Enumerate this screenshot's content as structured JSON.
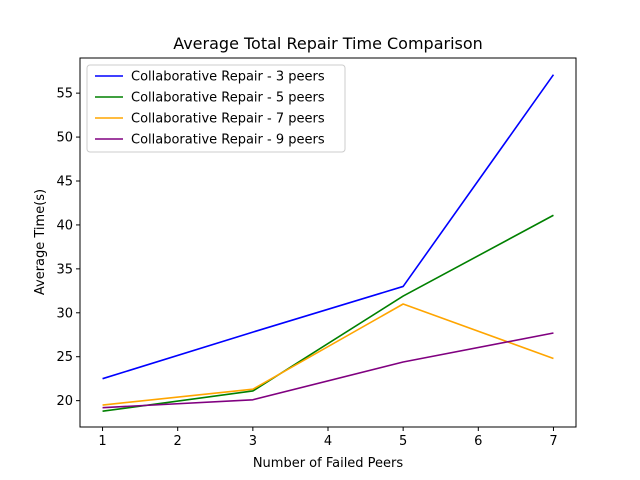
{
  "chart_data": {
    "type": "line",
    "title": "Average Total Repair Time Comparison",
    "xlabel": "Number of Failed Peers",
    "ylabel": "Average Time(s)",
    "x": [
      1,
      3,
      5,
      7
    ],
    "xlim": [
      0.7,
      7.3
    ],
    "ylim": [
      17.0,
      59.0
    ],
    "xticks": [
      1,
      2,
      3,
      4,
      5,
      6,
      7
    ],
    "yticks": [
      20,
      25,
      30,
      35,
      40,
      45,
      50,
      55
    ],
    "grid": false,
    "legend_position": "upper-left",
    "series": [
      {
        "name": "Collaborative Repair - 3 peers",
        "color": "#0000ff",
        "values": [
          22.5,
          27.8,
          33.0,
          57.1
        ]
      },
      {
        "name": "Collaborative Repair - 5 peers",
        "color": "#008000",
        "values": [
          18.8,
          21.1,
          31.9,
          41.1
        ]
      },
      {
        "name": "Collaborative Repair - 7 peers",
        "color": "#ffa500",
        "values": [
          19.5,
          21.3,
          31.0,
          24.8
        ]
      },
      {
        "name": "Collaborative Repair - 9 peers",
        "color": "#800080",
        "values": [
          19.2,
          20.1,
          24.4,
          27.7
        ]
      }
    ]
  }
}
